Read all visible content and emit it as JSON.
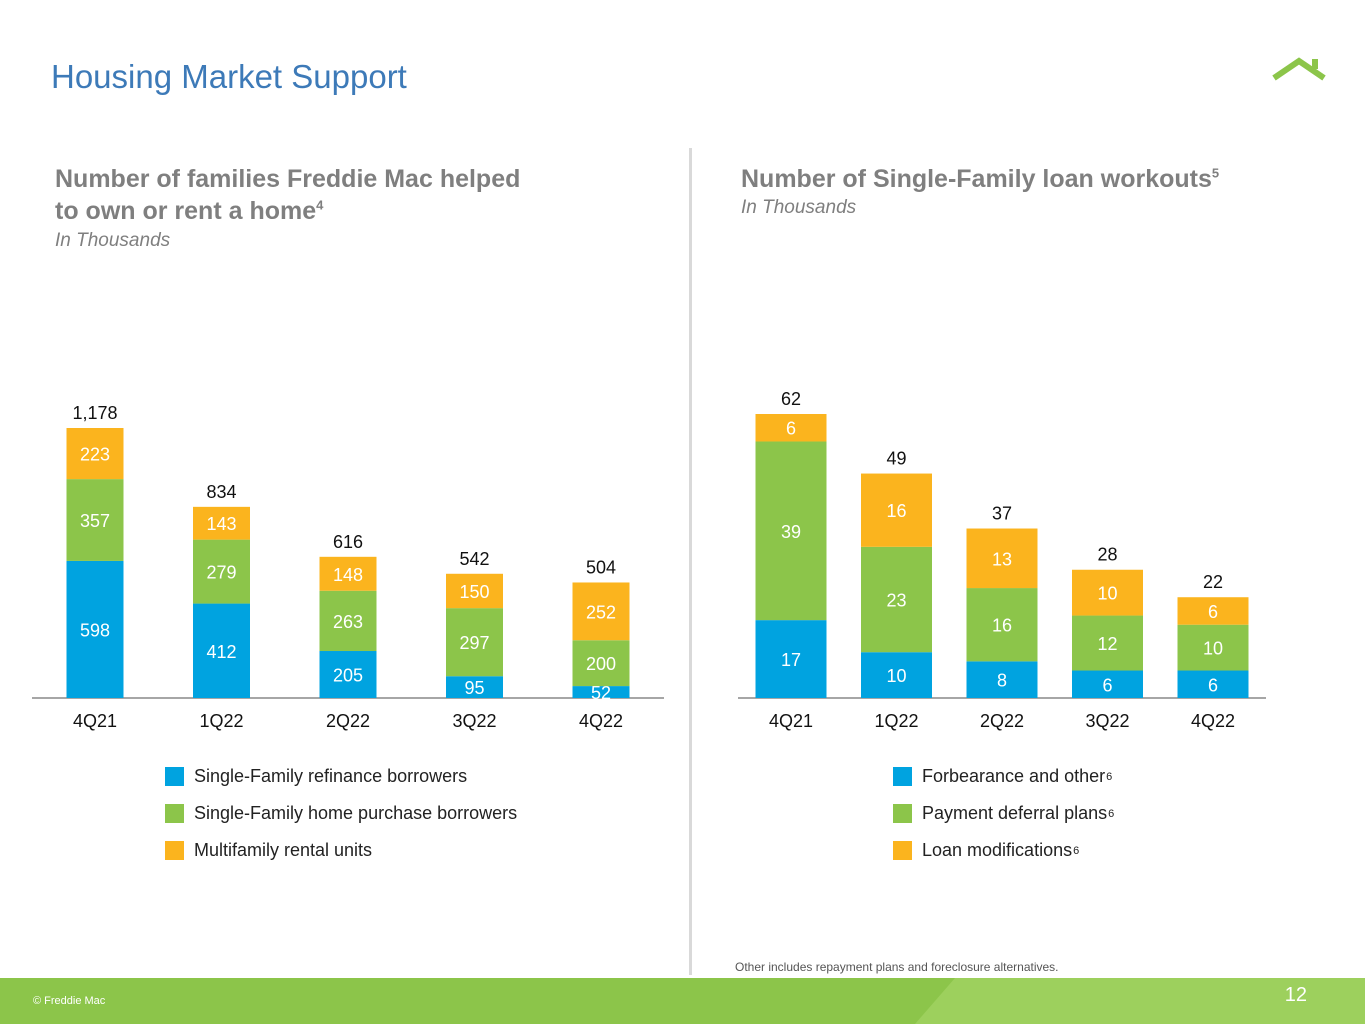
{
  "page": {
    "title": "Housing Market Support",
    "footnote": "Other includes repayment plans and foreclosure alternatives.",
    "copyright": "© Freddie Mac",
    "page_number": "12",
    "logo_icon": "house-roof-icon"
  },
  "colors": {
    "title": "#3d7ab8",
    "blue": "#00a3e0",
    "green": "#8cc54a",
    "orange": "#fbb41e",
    "subtitle_gray": "#7f7f7f"
  },
  "chart_data": [
    {
      "type": "bar",
      "stacked": true,
      "title_line1": "Number of families Freddie Mac helped",
      "title_line2": "to own or rent a home",
      "title_sup": "4",
      "subtitle": "In Thousands",
      "ylim": [
        0,
        1178
      ],
      "categories": [
        "4Q21",
        "1Q22",
        "2Q22",
        "3Q22",
        "4Q22"
      ],
      "totals": [
        "1,178",
        "834",
        "616",
        "542",
        "504"
      ],
      "series": [
        {
          "name": "Single-Family refinance borrowers",
          "sup": "",
          "color": "#00a3e0",
          "values": [
            598,
            412,
            205,
            95,
            52
          ]
        },
        {
          "name": "Single-Family home purchase borrowers",
          "sup": "",
          "color": "#8cc54a",
          "values": [
            357,
            279,
            263,
            297,
            200
          ]
        },
        {
          "name": "Multifamily rental units",
          "sup": "",
          "color": "#fbb41e",
          "values": [
            223,
            143,
            148,
            150,
            252
          ]
        }
      ]
    },
    {
      "type": "bar",
      "stacked": true,
      "title_line1": "Number of Single-Family loan workouts",
      "title_line2": "",
      "title_sup": "5",
      "subtitle": "In Thousands",
      "ylim": [
        0,
        62
      ],
      "categories": [
        "4Q21",
        "1Q22",
        "2Q22",
        "3Q22",
        "4Q22"
      ],
      "totals": [
        "62",
        "49",
        "37",
        "28",
        "22"
      ],
      "series": [
        {
          "name": "Forbearance and other",
          "sup": "6",
          "color": "#00a3e0",
          "values": [
            17,
            10,
            8,
            6,
            6
          ]
        },
        {
          "name": "Payment deferral plans",
          "sup": "6",
          "color": "#8cc54a",
          "values": [
            39,
            23,
            16,
            12,
            10
          ]
        },
        {
          "name": "Loan modifications",
          "sup": "6",
          "color": "#fbb41e",
          "values": [
            6,
            16,
            13,
            10,
            6
          ]
        }
      ]
    }
  ]
}
